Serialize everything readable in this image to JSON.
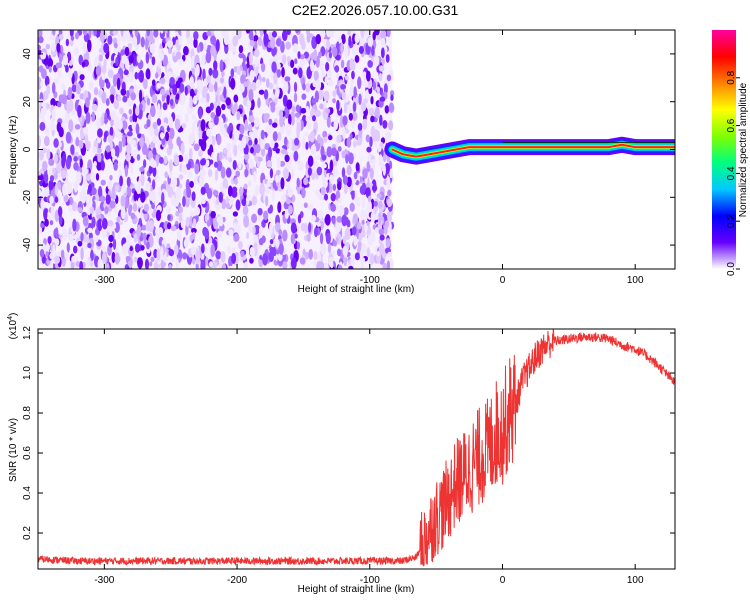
{
  "title": "C2E2.2026.057.10.00.G31",
  "chart_data": [
    {
      "type": "heatmap",
      "xlabel": "Height of straight line (km)",
      "ylabel": "Frequency (Hz)",
      "xlim": [
        -350,
        130
      ],
      "ylim": [
        -50,
        50
      ],
      "xticks": [
        -300,
        -200,
        -100,
        0,
        100
      ],
      "xtick_labels": [
        "-300",
        "-200",
        "-100",
        "0",
        "100"
      ],
      "yticks": [
        -40,
        -20,
        0,
        20,
        40
      ],
      "ytick_labels": [
        "-40",
        "-20",
        "0",
        "20",
        "40"
      ],
      "noise_region_x": [
        -350,
        -83
      ],
      "signal_track": {
        "x": [
          -83,
          -75,
          -65,
          -55,
          -45,
          -35,
          -25,
          -15,
          -5,
          5,
          20,
          40,
          60,
          80,
          90,
          100,
          130
        ],
        "y": [
          0,
          -2,
          -3,
          -2,
          -1,
          0,
          1,
          1,
          1,
          1,
          1,
          1,
          1,
          1,
          2,
          1,
          1
        ]
      },
      "colorbar": {
        "label": "Normalized spectral amplitude",
        "range": [
          0,
          1
        ],
        "ticks": [
          0.0,
          0.2,
          0.4,
          0.6,
          0.8
        ],
        "tick_labels": [
          "0.0",
          "0.2",
          "0.4",
          "0.6",
          "0.8"
        ],
        "colors": [
          "#ffffff",
          "#6600ff",
          "#0000ff",
          "#00c8ff",
          "#00ff80",
          "#80ff00",
          "#ffff00",
          "#ff8000",
          "#ff0000",
          "#ff00a0"
        ]
      },
      "grid": false
    },
    {
      "type": "line",
      "xlabel": "Height of straight line (km)",
      "ylabel": "SNR (10 * v/v)",
      "multiplier_label": "(x10",
      "multiplier_exp": "4",
      "xlim": [
        -350,
        130
      ],
      "ylim": [
        0.02,
        1.22
      ],
      "xticks": [
        -300,
        -200,
        -100,
        0,
        100
      ],
      "xtick_labels": [
        "-300",
        "-200",
        "-100",
        "0",
        "100"
      ],
      "yticks": [
        0.2,
        0.4,
        0.6,
        0.8,
        1.0,
        1.2
      ],
      "ytick_labels": [
        "0.2",
        "0.4",
        "0.6",
        "0.8",
        "1.0",
        "1.2"
      ],
      "series": [
        {
          "color": "#ee3333",
          "x": [
            -350,
            -320,
            -290,
            -260,
            -230,
            -200,
            -170,
            -140,
            -110,
            -90,
            -75,
            -65,
            -60,
            -55,
            -50,
            -45,
            -40,
            -35,
            -30,
            -25,
            -20,
            -15,
            -10,
            -5,
            0,
            5,
            10,
            15,
            20,
            25,
            30,
            35,
            40,
            50,
            60,
            70,
            80,
            90,
            100,
            110,
            120,
            130
          ],
          "y": [
            0.07,
            0.06,
            0.06,
            0.06,
            0.06,
            0.06,
            0.06,
            0.06,
            0.06,
            0.06,
            0.06,
            0.08,
            0.14,
            0.22,
            0.28,
            0.32,
            0.38,
            0.45,
            0.48,
            0.52,
            0.56,
            0.6,
            0.62,
            0.7,
            0.72,
            0.8,
            0.85,
            0.96,
            1.02,
            1.08,
            1.12,
            1.15,
            1.16,
            1.17,
            1.18,
            1.18,
            1.17,
            1.14,
            1.12,
            1.08,
            1.02,
            0.95
          ]
        }
      ],
      "grid": false
    }
  ]
}
